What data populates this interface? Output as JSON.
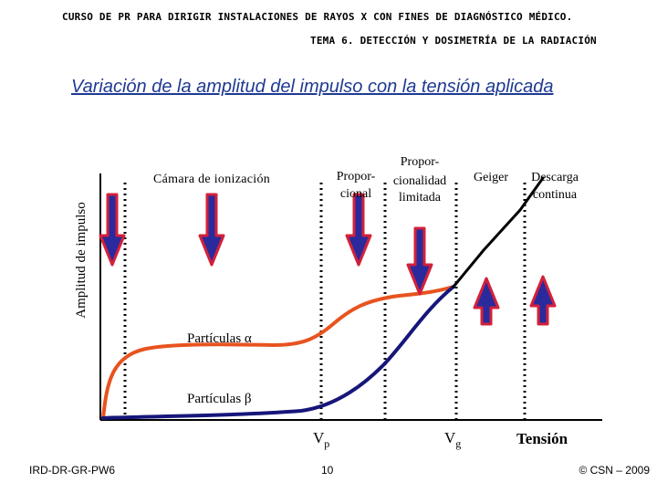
{
  "header": {
    "course": "CURSO DE PR PARA DIRIGIR INSTALACIONES DE RAYOS X CON FINES DE DIAGNÓSTICO MÉDICO.",
    "topic": "TEMA 6. DETECCIÓN Y DOSIMETRÍA DE LA RADIACIÓN"
  },
  "title": "Variación de la amplitud del impulso con la tensión aplicada",
  "axes": {
    "ylabel": "Amplitud de impulso",
    "xlabel": "Tensión",
    "tick_vp_main": "V",
    "tick_vp_sub": "p",
    "tick_vg_main": "V",
    "tick_vg_sub": "g"
  },
  "regions": {
    "ionization": "Cámara de ionización",
    "prop_line1": "Propor-",
    "prop_line2": "cional",
    "limited_line1": "Propor-",
    "limited_line2": "cionalidad",
    "limited_line3": "limitada",
    "geiger": "Geiger",
    "discharge_line1": "Descarga",
    "discharge_line2": "continua"
  },
  "curves": {
    "alpha_label": "Partículas α",
    "beta_label": "Partículas β",
    "alpha_color": "#e8531f",
    "beta_color": "#16167a",
    "merged_color": "#000000"
  },
  "arrows": {
    "fill": "#2a2a9c",
    "outline": "#d3213a"
  },
  "footer": {
    "code": "IRD-DR-GR-PW6",
    "page": "10",
    "copyright": "© CSN – 2009"
  }
}
